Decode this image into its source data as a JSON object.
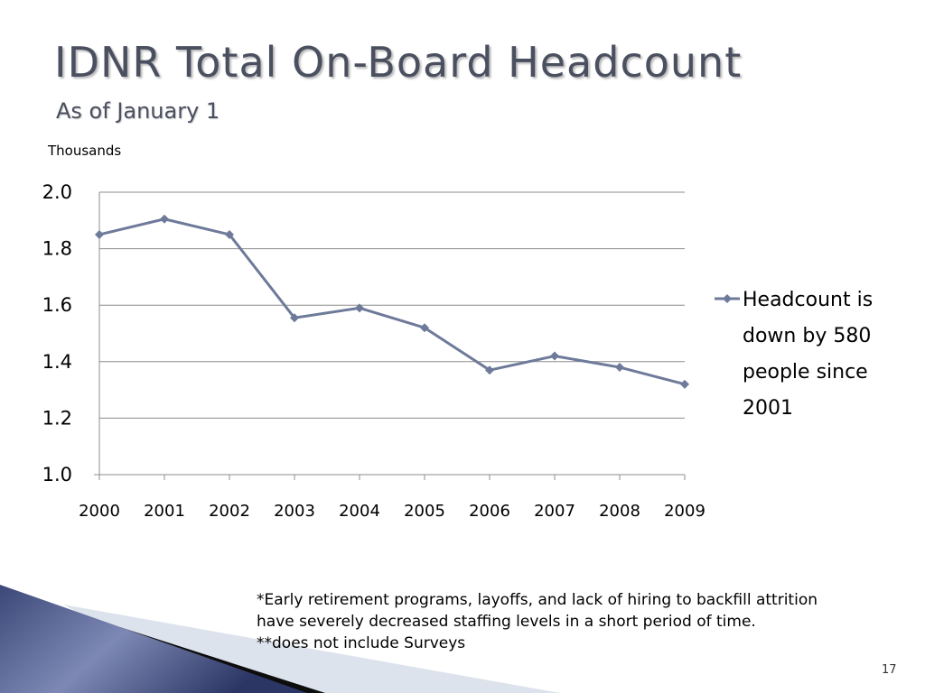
{
  "slide": {
    "title": "IDNR Total On-Board Headcount",
    "subtitle": "As of January 1",
    "footnote_lines": [
      "*Early retirement programs, layoffs, and lack of hiring to backfill attrition",
      "have severely decreased staffing levels in a short period of time.",
      "**does not include Surveys"
    ],
    "page_number": "17"
  },
  "chart_data": {
    "type": "line",
    "units_label": "Thousands",
    "categories": [
      "2000",
      "2001",
      "2002",
      "2003",
      "2004",
      "2005",
      "2006",
      "2007",
      "2008",
      "2009"
    ],
    "series": [
      {
        "name": "Headcount is down by 580 people since 2001",
        "values": [
          1.85,
          1.905,
          1.85,
          1.555,
          1.59,
          1.52,
          1.37,
          1.42,
          1.38,
          1.32
        ],
        "color": "#6e7a9a"
      }
    ],
    "ylim": [
      1.0,
      2.0
    ],
    "yticks": [
      "1.0",
      "1.2",
      "1.4",
      "1.6",
      "1.8",
      "2.0"
    ],
    "grid": true,
    "legend_position": "right"
  }
}
